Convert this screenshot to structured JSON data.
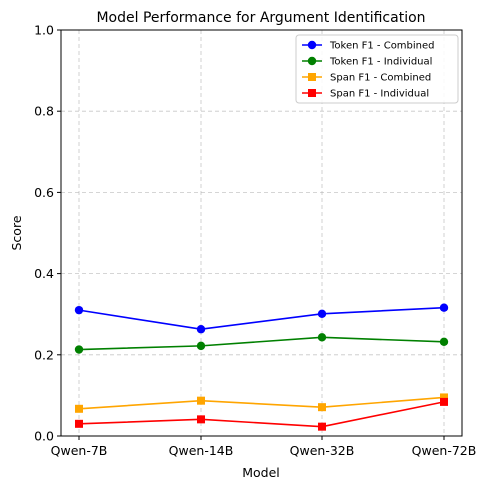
{
  "chart_data": {
    "type": "line",
    "title": "Model Performance for Argument Identification",
    "xlabel": "Model",
    "ylabel": "Score",
    "categories": [
      "Qwen-7B",
      "Qwen-14B",
      "Qwen-32B",
      "Qwen-72B"
    ],
    "ylim": [
      0,
      1.0
    ],
    "yticks": [
      "0.0",
      "0.2",
      "0.4",
      "0.6",
      "0.8",
      "1.0"
    ],
    "grid": true,
    "legend_position": "top-right",
    "series": [
      {
        "name": "Token F1 - Combined",
        "color": "#0000ff",
        "marker": "circle",
        "values": [
          0.31,
          0.263,
          0.301,
          0.316
        ]
      },
      {
        "name": "Token F1 - Individual",
        "color": "#008000",
        "marker": "circle",
        "values": [
          0.213,
          0.222,
          0.243,
          0.232
        ]
      },
      {
        "name": "Span F1 - Combined",
        "color": "#ffa500",
        "marker": "square",
        "values": [
          0.067,
          0.087,
          0.071,
          0.095
        ]
      },
      {
        "name": "Span F1 - Individual",
        "color": "#ff0000",
        "marker": "square",
        "values": [
          0.03,
          0.041,
          0.023,
          0.084
        ]
      }
    ]
  }
}
